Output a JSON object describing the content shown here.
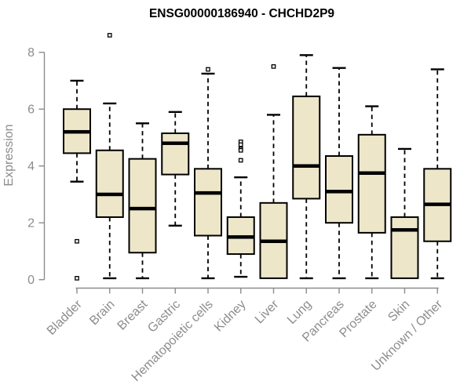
{
  "chart_data": {
    "type": "boxplot",
    "title": "ENSG00000186940 - CHCHD2P9",
    "xlabel": "",
    "ylabel": "Expression",
    "ylim": [
      0,
      8.7
    ],
    "yticks": [
      0,
      2,
      4,
      6,
      8
    ],
    "grid": false,
    "legend": null,
    "categories": [
      "Bladder",
      "Brain",
      "Breast",
      "Gastric",
      "Hematopoietic cells",
      "Kidney",
      "Liver",
      "Lung",
      "Pancreas",
      "Prostate",
      "Skin",
      "Unknown / Other"
    ],
    "series": [
      {
        "name": "Bladder",
        "whisker_low": 3.45,
        "q1": 4.45,
        "median": 5.2,
        "q3": 6.0,
        "whisker_high": 7.0,
        "outliers": [
          1.35,
          0.05
        ]
      },
      {
        "name": "Brain",
        "whisker_low": 0.05,
        "q1": 2.2,
        "median": 3.0,
        "q3": 4.55,
        "whisker_high": 6.2,
        "outliers": [
          8.6
        ]
      },
      {
        "name": "Breast",
        "whisker_low": 0.05,
        "q1": 0.95,
        "median": 2.5,
        "q3": 4.25,
        "whisker_high": 5.5,
        "outliers": []
      },
      {
        "name": "Gastric",
        "whisker_low": 1.9,
        "q1": 3.7,
        "median": 4.8,
        "q3": 5.15,
        "whisker_high": 5.9,
        "outliers": []
      },
      {
        "name": "Hematopoietic cells",
        "whisker_low": 0.05,
        "q1": 1.55,
        "median": 3.05,
        "q3": 3.9,
        "whisker_high": 7.25,
        "outliers": [
          7.4
        ]
      },
      {
        "name": "Kidney",
        "whisker_low": 0.1,
        "q1": 0.9,
        "median": 1.5,
        "q3": 2.2,
        "whisker_high": 3.6,
        "outliers": [
          4.85,
          4.75,
          4.6,
          4.55,
          4.2
        ]
      },
      {
        "name": "Liver",
        "whisker_low": 0.05,
        "q1": 0.05,
        "median": 1.35,
        "q3": 2.7,
        "whisker_high": 5.8,
        "outliers": [
          7.5
        ]
      },
      {
        "name": "Lung",
        "whisker_low": 0.05,
        "q1": 2.85,
        "median": 4.0,
        "q3": 6.45,
        "whisker_high": 7.9,
        "outliers": []
      },
      {
        "name": "Pancreas",
        "whisker_low": 0.05,
        "q1": 2.0,
        "median": 3.1,
        "q3": 4.35,
        "whisker_high": 7.45,
        "outliers": []
      },
      {
        "name": "Prostate",
        "whisker_low": 0.05,
        "q1": 1.65,
        "median": 3.75,
        "q3": 5.1,
        "whisker_high": 6.1,
        "outliers": []
      },
      {
        "name": "Skin",
        "whisker_low": 0.05,
        "q1": 0.05,
        "median": 1.75,
        "q3": 2.2,
        "whisker_high": 4.6,
        "outliers": []
      },
      {
        "name": "Unknown / Other",
        "whisker_low": 0.05,
        "q1": 1.35,
        "median": 2.65,
        "q3": 3.9,
        "whisker_high": 7.4,
        "outliers": []
      }
    ],
    "colors": {
      "box_fill": "#EDE6C8",
      "box_stroke": "#000000",
      "median": "#000000",
      "whisker": "#000000",
      "outlier_stroke": "#000000",
      "outlier_fill": "#ffffff",
      "axis": "#8c8c8c",
      "tick_label": "#8c8c8c",
      "title": "#000000",
      "background": "#ffffff"
    }
  }
}
